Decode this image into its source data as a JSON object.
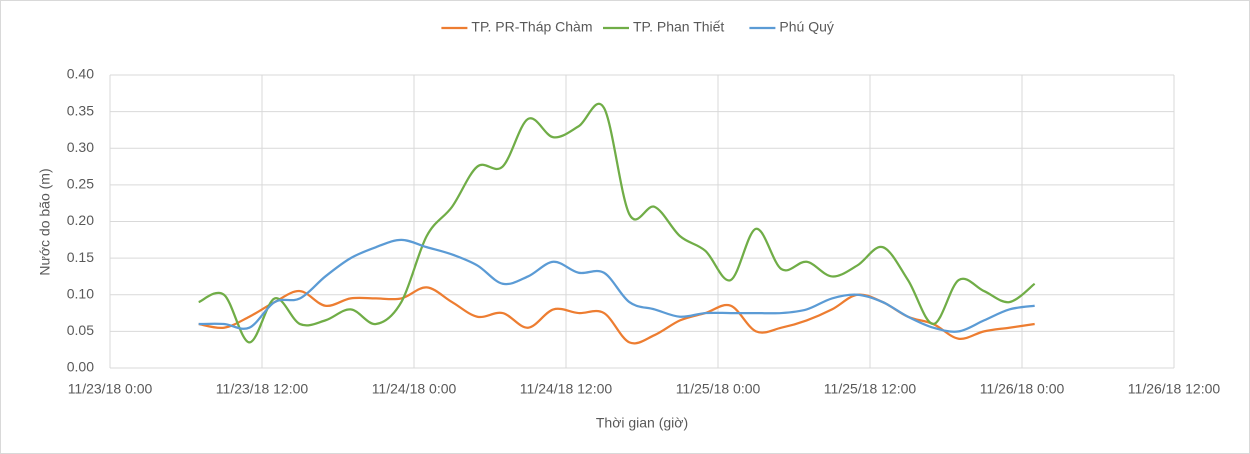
{
  "chart_data": {
    "type": "line",
    "y_label": "Nước do bão (m)",
    "x_label": "Thời gian (giờ)",
    "x": [
      "2018-11-23T07:00",
      "2018-11-23T09:00",
      "2018-11-23T11:00",
      "2018-11-23T13:00",
      "2018-11-23T15:00",
      "2018-11-23T17:00",
      "2018-11-23T19:00",
      "2018-11-23T21:00",
      "2018-11-23T23:00",
      "2018-11-24T01:00",
      "2018-11-24T03:00",
      "2018-11-24T05:00",
      "2018-11-24T07:00",
      "2018-11-24T09:00",
      "2018-11-24T11:00",
      "2018-11-24T13:00",
      "2018-11-24T15:00",
      "2018-11-24T17:00",
      "2018-11-24T19:00",
      "2018-11-24T21:00",
      "2018-11-24T23:00",
      "2018-11-25T01:00",
      "2018-11-25T03:00",
      "2018-11-25T05:00",
      "2018-11-25T07:00",
      "2018-11-25T09:00",
      "2018-11-25T11:00",
      "2018-11-25T13:00",
      "2018-11-25T15:00",
      "2018-11-25T17:00",
      "2018-11-25T19:00",
      "2018-11-25T21:00",
      "2018-11-25T23:00",
      "2018-11-26T01:00"
    ],
    "series": [
      {
        "name": "TP. PR-Tháp Chàm",
        "color": "#ed7d31",
        "values": [
          0.06,
          0.055,
          0.07,
          0.09,
          0.105,
          0.085,
          0.095,
          0.095,
          0.095,
          0.11,
          0.09,
          0.07,
          0.075,
          0.055,
          0.08,
          0.075,
          0.075,
          0.035,
          0.045,
          0.065,
          0.075,
          0.085,
          0.05,
          0.055,
          0.065,
          0.08,
          0.1,
          0.09,
          0.07,
          0.06,
          0.04,
          0.05,
          0.055,
          0.06
        ]
      },
      {
        "name": "TP. Phan Thiết",
        "color": "#70ad47",
        "values": [
          0.09,
          0.1,
          0.035,
          0.095,
          0.06,
          0.065,
          0.08,
          0.06,
          0.09,
          0.18,
          0.22,
          0.275,
          0.275,
          0.34,
          0.315,
          0.33,
          0.355,
          0.21,
          0.22,
          0.18,
          0.16,
          0.12,
          0.19,
          0.135,
          0.145,
          0.125,
          0.14,
          0.165,
          0.12,
          0.06,
          0.12,
          0.105,
          0.09,
          0.115
        ]
      },
      {
        "name": "Phú Quý",
        "color": "#5b9bd5",
        "values": [
          0.06,
          0.06,
          0.055,
          0.09,
          0.095,
          0.125,
          0.15,
          0.165,
          0.175,
          0.165,
          0.155,
          0.14,
          0.115,
          0.125,
          0.145,
          0.13,
          0.13,
          0.09,
          0.08,
          0.07,
          0.075,
          0.075,
          0.075,
          0.075,
          0.08,
          0.095,
          0.1,
          0.09,
          0.07,
          0.055,
          0.05,
          0.065,
          0.08,
          0.085
        ]
      }
    ],
    "xlim": [
      "2018-11-23T00:00",
      "2018-11-26T12:00"
    ],
    "xticks": [
      {
        "value": "2018-11-23T00:00",
        "label": "11/23/18 0:00"
      },
      {
        "value": "2018-11-23T12:00",
        "label": "11/23/18 12:00"
      },
      {
        "value": "2018-11-24T00:00",
        "label": "11/24/18 0:00"
      },
      {
        "value": "2018-11-24T12:00",
        "label": "11/24/18 12:00"
      },
      {
        "value": "2018-11-25T00:00",
        "label": "11/25/18 0:00"
      },
      {
        "value": "2018-11-25T12:00",
        "label": "11/25/18 12:00"
      },
      {
        "value": "2018-11-26T00:00",
        "label": "11/26/18 0:00"
      },
      {
        "value": "2018-11-26T12:00",
        "label": "11/26/18 12:00"
      }
    ],
    "ylim": [
      0,
      0.4
    ],
    "yticks": [
      {
        "value": 0,
        "label": "0.00"
      },
      {
        "value": 0.05,
        "label": "0.05"
      },
      {
        "value": 0.1,
        "label": "0.10"
      },
      {
        "value": 0.15,
        "label": "0.15"
      },
      {
        "value": 0.2,
        "label": "0.20"
      },
      {
        "value": 0.25,
        "label": "0.25"
      },
      {
        "value": 0.3,
        "label": "0.30"
      },
      {
        "value": 0.35,
        "label": "0.35"
      },
      {
        "value": 0.4,
        "label": "0.40"
      }
    ],
    "grid": true,
    "legend": "top"
  }
}
